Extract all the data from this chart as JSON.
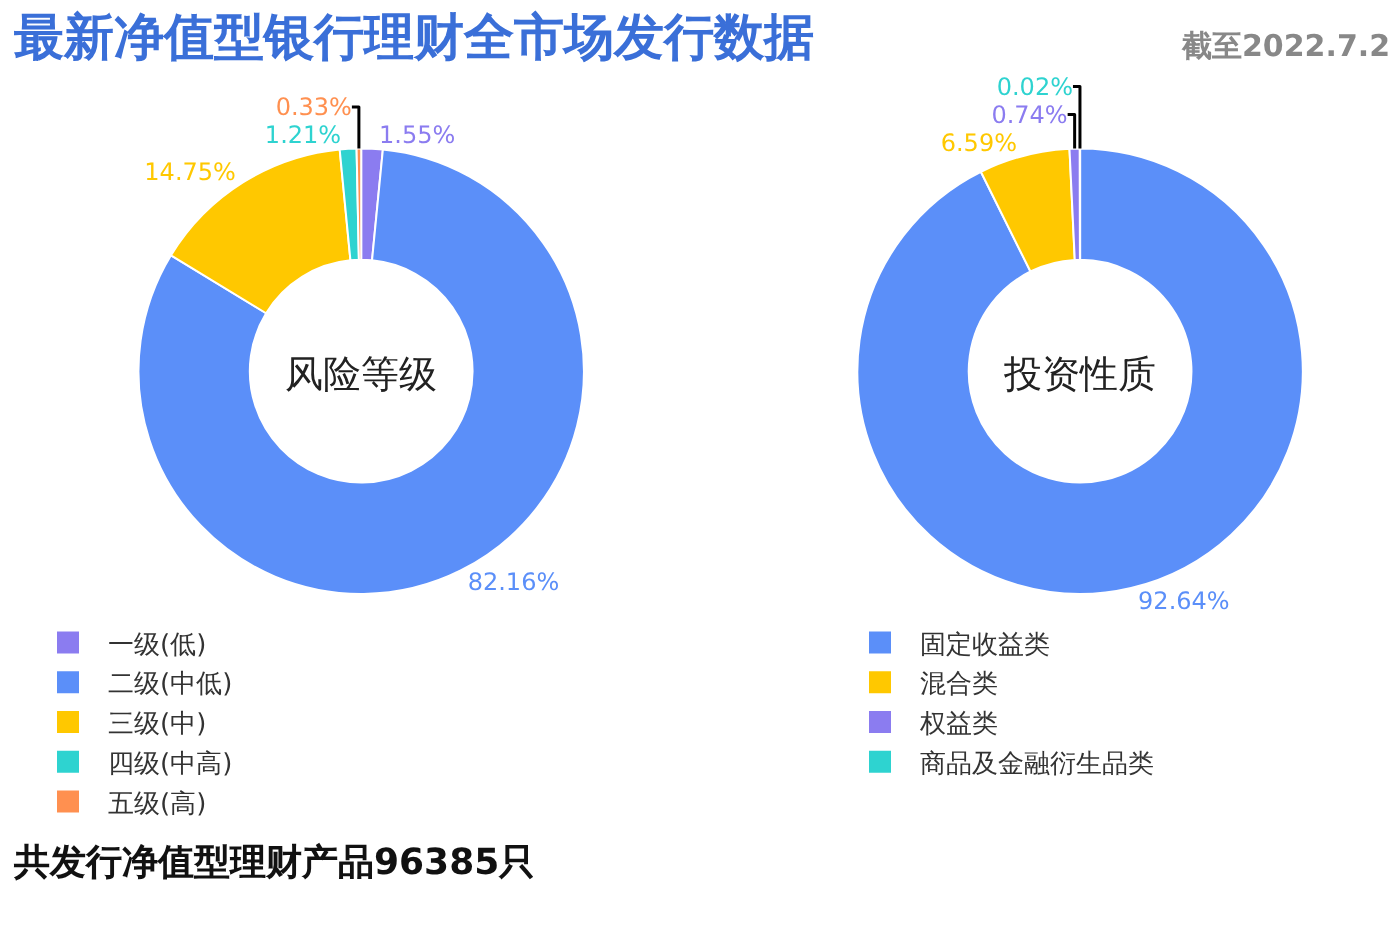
{
  "chart_data": [
    {
      "type": "other",
      "title": "最新净值型银行理财全市场发行数据",
      "subtitle": "截至2022.7.2",
      "annotations": [
        "共发行净值型理财产品96385只"
      ]
    },
    {
      "type": "donut",
      "title": "风险等级",
      "categories": [
        "一级(低)",
        "二级(中低)",
        "三级(中)",
        "四级(中高)",
        "五级(高)"
      ],
      "values": [
        1.55,
        82.16,
        14.75,
        1.21,
        0.33
      ],
      "value_labels": [
        "1.55%",
        "82.16%",
        "14.75%",
        "1.21%",
        "0.33%"
      ],
      "colors": [
        "#8b7cf0",
        "#5b8ff9",
        "#ffc800",
        "#2ed3d0",
        "#ff9050"
      ],
      "legend": "bottom"
    },
    {
      "type": "donut",
      "title": "投资性质",
      "categories": [
        "固定收益类",
        "混合类",
        "权益类",
        "商品及金融衍生品类"
      ],
      "values": [
        92.64,
        6.59,
        0.74,
        0.02
      ],
      "value_labels": [
        "92.64%",
        "6.59%",
        "0.74%",
        "0.02%"
      ],
      "colors": [
        "#5b8ff9",
        "#ffc800",
        "#8b7cf0",
        "#2ed3d0"
      ],
      "legend": "bottom"
    }
  ]
}
